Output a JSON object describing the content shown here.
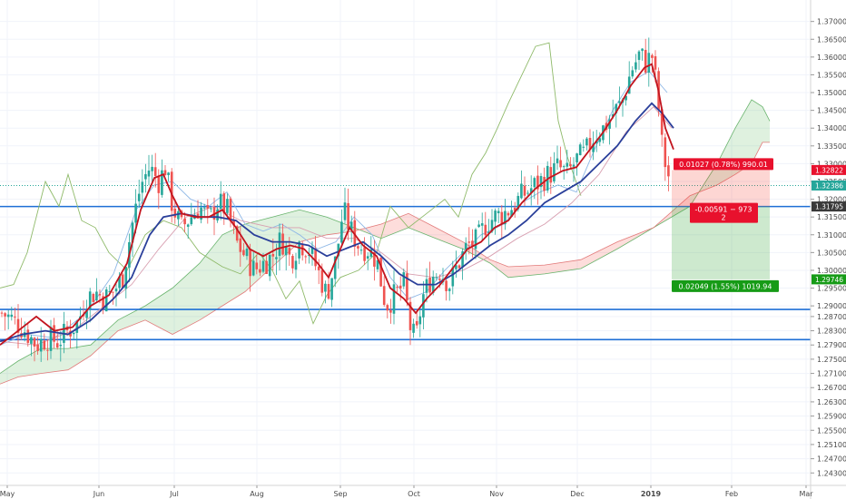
{
  "chart_data": {
    "type": "candlestick",
    "instrument_note": "",
    "x_axis": {
      "labels": [
        "May",
        "Jun",
        "Jul",
        "Aug",
        "Sep",
        "Oct",
        "Nov",
        "Dec",
        "2019",
        "Feb",
        "Mar"
      ]
    },
    "y_axis": {
      "range": [
        1.238,
        1.373
      ],
      "ticks": [
        "1.37000",
        "1.36500",
        "1.36000",
        "1.35500",
        "1.35000",
        "1.34500",
        "1.34000",
        "1.33500",
        "1.33000",
        "1.32500",
        "1.32000",
        "1.31500",
        "1.31000",
        "1.30500",
        "1.30000",
        "1.29500",
        "1.29000",
        "1.28700",
        "1.28300",
        "1.27900",
        "1.27500",
        "1.27100",
        "1.26700",
        "1.26300",
        "1.25900",
        "1.25500",
        "1.25100",
        "1.24700",
        "1.24300"
      ]
    },
    "price_tags": [
      {
        "label": "1.32822",
        "value": 1.32822,
        "color": "#e8112d"
      },
      {
        "label": "1.32386",
        "value": 1.32386,
        "color": "#26a69a"
      },
      {
        "label": "1.31795",
        "value": 1.31795,
        "color": "#3a3a3a"
      },
      {
        "label": "1.29746",
        "value": 1.29746,
        "color": "#169b16"
      }
    ],
    "horizontal_lines": [
      {
        "value": 1.31795,
        "color": "#1e6fd6"
      },
      {
        "value": 1.289,
        "color": "#1e6fd6"
      },
      {
        "value": 1.2805,
        "color": "#1e6fd6"
      }
    ],
    "dotted_line": {
      "value": 1.32386,
      "color": "#26a69a"
    },
    "position": {
      "entry": 1.31795,
      "stop": 1.32822,
      "target": 1.29746,
      "target_label": "0.02049 (1.55%) 1019.94",
      "stop_label": "0.01027 (0.78%) 990.01",
      "mid_label_1": "-0.00591 − 973",
      "mid_label_2": "2"
    },
    "candles_note": "Daily candlestick series May 2018 - Jan 2019 with moving averages and Ichimoku cloud"
  }
}
